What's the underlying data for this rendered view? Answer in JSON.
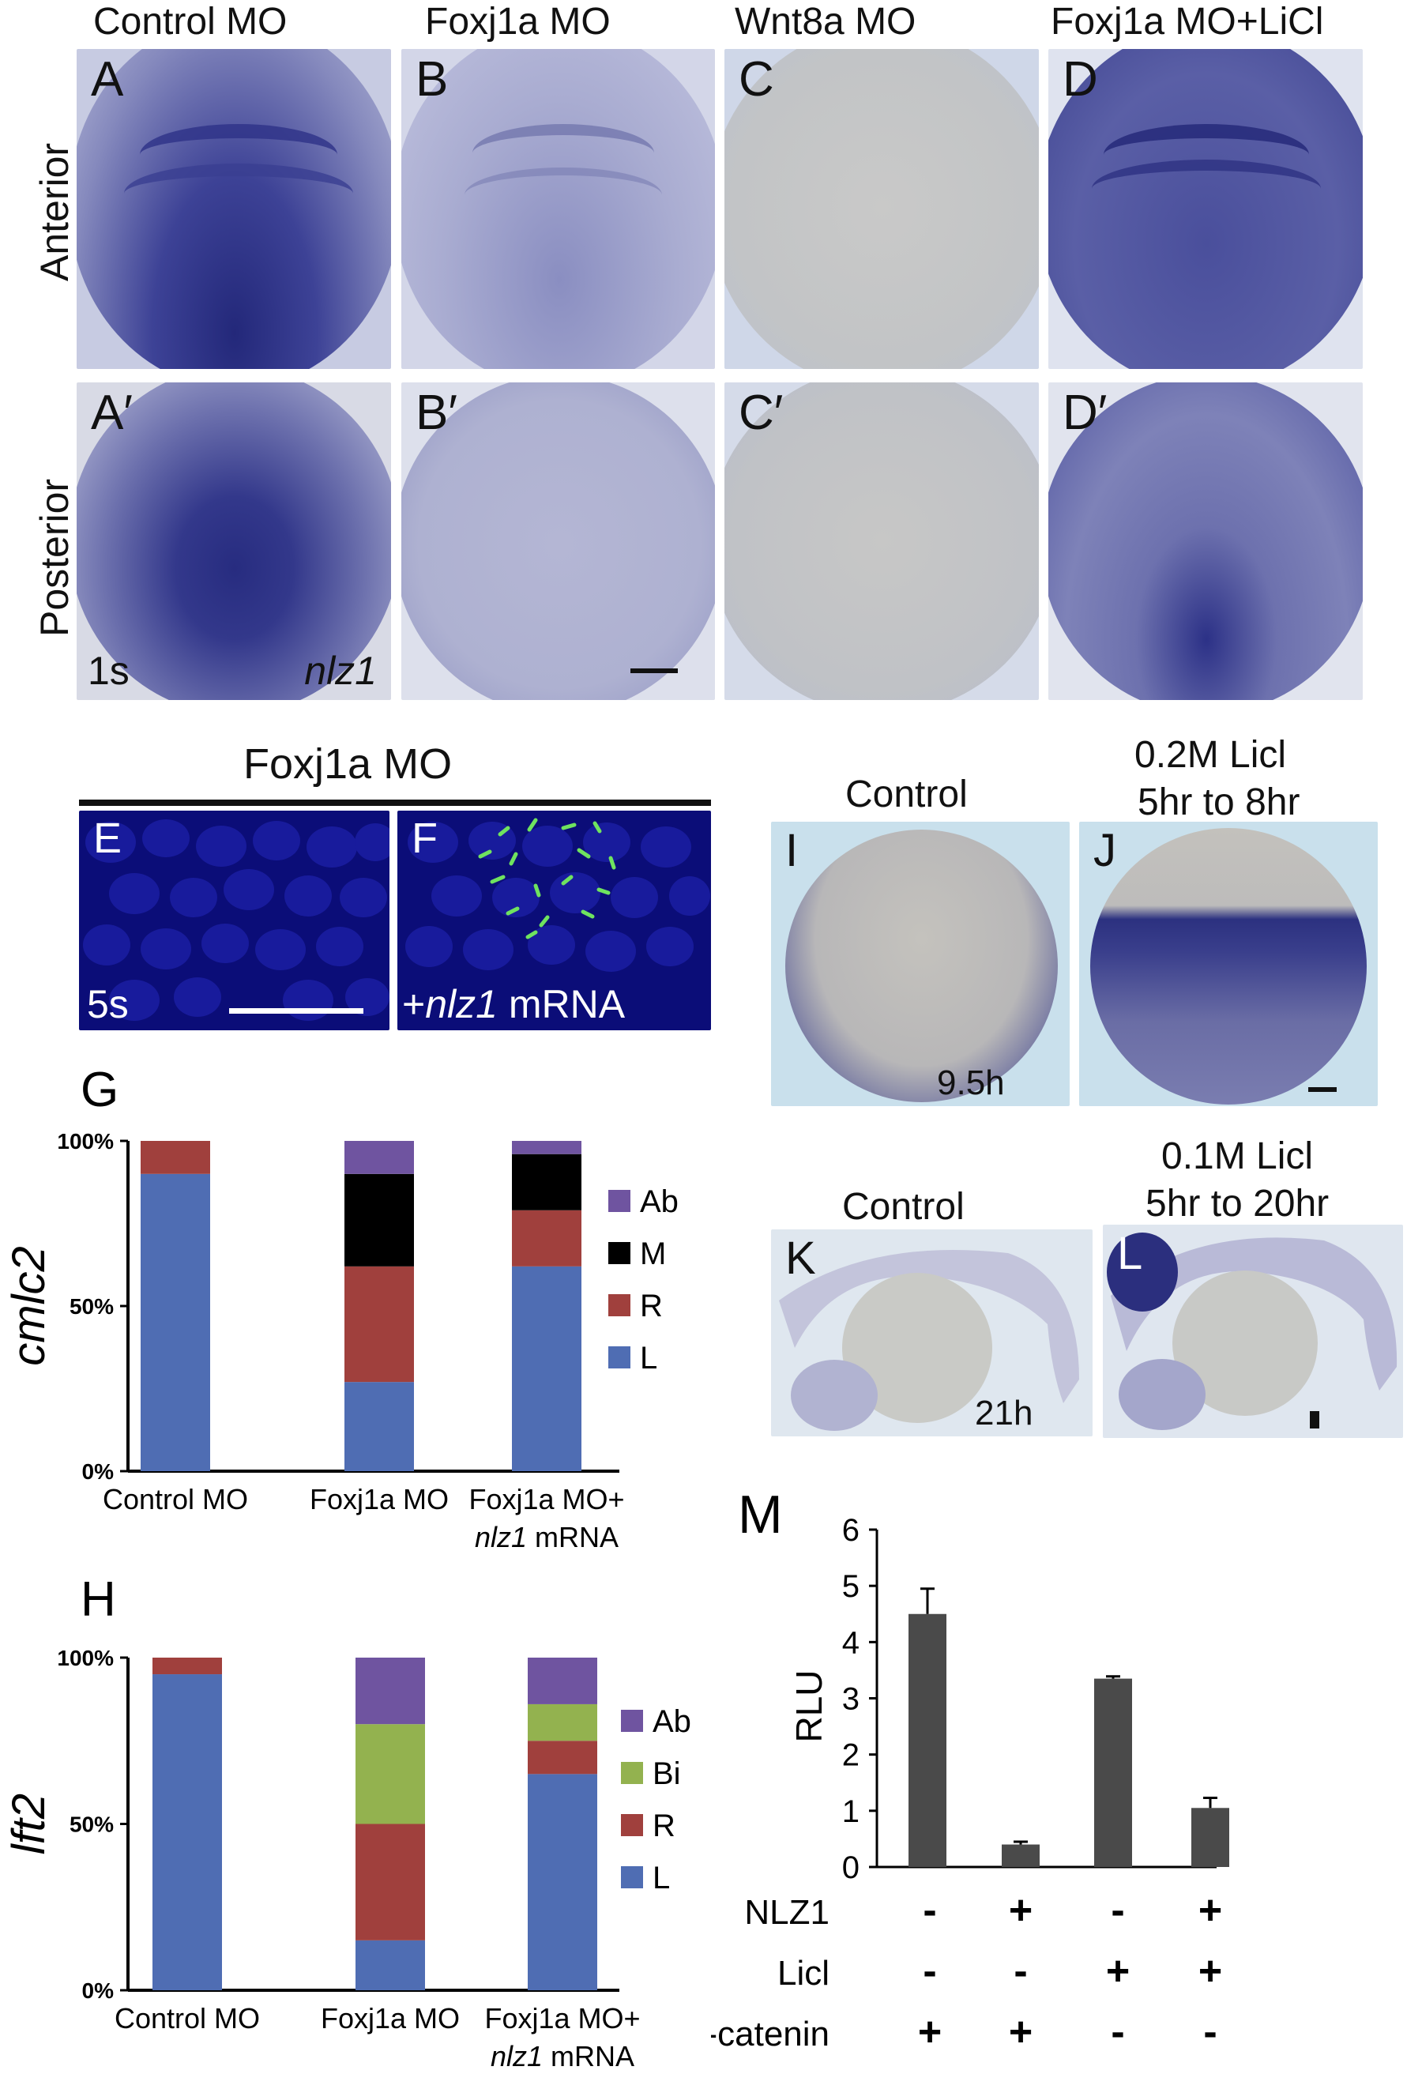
{
  "top": {
    "columns": [
      "Control MO",
      "Foxj1a MO",
      "Wnt8a MO",
      "Foxj1a MO+LiCl"
    ],
    "rows": [
      "Anterior",
      "Posterior"
    ],
    "panels_row1": [
      "A",
      "B",
      "C",
      "D"
    ],
    "panels_row2": [
      "A′",
      "B′",
      "C′",
      "D′"
    ],
    "stage": "1s",
    "gene": "nlz1"
  },
  "ef": {
    "title": "Foxj1a MO",
    "e_label": "E",
    "f_label": "F",
    "stage": "5s",
    "f_note": "+nlz1 mRNA",
    "f_note_plus": "+",
    "f_note_gene": "nlz1",
    "f_note_rest": " mRNA"
  },
  "ij": {
    "i_title": "Control",
    "j_title_1": "0.2M Licl",
    "j_title_2": "5hr to 8hr",
    "i_label": "I",
    "j_label": "J",
    "time": "9.5h"
  },
  "kl": {
    "k_title": "Control",
    "l_title_1": "0.1M Licl",
    "l_title_2": "5hr to 20hr",
    "k_label": "K",
    "l_label": "L",
    "time": "21h"
  },
  "colors": {
    "L": "#4f6db3",
    "R": "#a0403d",
    "M": "#000000",
    "Ab": "#6f54a0",
    "Bi": "#93b24f",
    "bar": "#4a4a4a"
  },
  "chart_data": [
    {
      "panel": "G",
      "type": "bar",
      "stacked": true,
      "ylabel": "cmlc2",
      "categories": [
        "Control MO",
        "Foxj1a MO",
        "Foxj1a MO+ nlz1 mRNA"
      ],
      "category_lines": [
        [
          "Control MO"
        ],
        [
          "Foxj1a MO"
        ],
        [
          "Foxj1a MO+",
          "nlz1 mRNA"
        ]
      ],
      "yticks": [
        "0%",
        "50%",
        "100%"
      ],
      "ylim": [
        0,
        100
      ],
      "series": [
        {
          "name": "L",
          "values": [
            90,
            27,
            62
          ]
        },
        {
          "name": "R",
          "values": [
            10,
            35,
            17
          ]
        },
        {
          "name": "M",
          "values": [
            0,
            28,
            17
          ]
        },
        {
          "name": "Ab",
          "values": [
            0,
            10,
            4
          ]
        }
      ],
      "legend_order": [
        "Ab",
        "M",
        "R",
        "L"
      ]
    },
    {
      "panel": "H",
      "type": "bar",
      "stacked": true,
      "ylabel": "lft2",
      "categories": [
        "Control MO",
        "Foxj1a MO",
        "Foxj1a MO+ nlz1 mRNA"
      ],
      "category_lines": [
        [
          "Control MO"
        ],
        [
          "Foxj1a MO"
        ],
        [
          "Foxj1a MO+",
          "nlz1 mRNA"
        ]
      ],
      "yticks": [
        "0%",
        "50%",
        "100%"
      ],
      "ylim": [
        0,
        100
      ],
      "series": [
        {
          "name": "L",
          "values": [
            95,
            15,
            65
          ]
        },
        {
          "name": "R",
          "values": [
            5,
            35,
            10
          ]
        },
        {
          "name": "Bi",
          "values": [
            0,
            30,
            11
          ]
        },
        {
          "name": "Ab",
          "values": [
            0,
            20,
            14
          ]
        }
      ],
      "legend_order": [
        "Ab",
        "Bi",
        "R",
        "L"
      ]
    },
    {
      "panel": "M",
      "type": "bar",
      "ylabel": "RLU",
      "yticks": [
        "0",
        "1",
        "2",
        "3",
        "4",
        "5",
        "6"
      ],
      "ylim": [
        0,
        6
      ],
      "values": [
        4.5,
        0.4,
        3.35,
        1.05
      ],
      "errors": [
        0.45,
        0.05,
        0.04,
        0.18
      ],
      "conditions": [
        {
          "name": "NLZ1",
          "signs": [
            "-",
            "+",
            "-",
            "+"
          ]
        },
        {
          "name": "Licl",
          "signs": [
            "-",
            "-",
            "+",
            "+"
          ]
        },
        {
          "name": "β-catenin",
          "signs": [
            "+",
            "+",
            "-",
            "-"
          ]
        }
      ]
    }
  ]
}
